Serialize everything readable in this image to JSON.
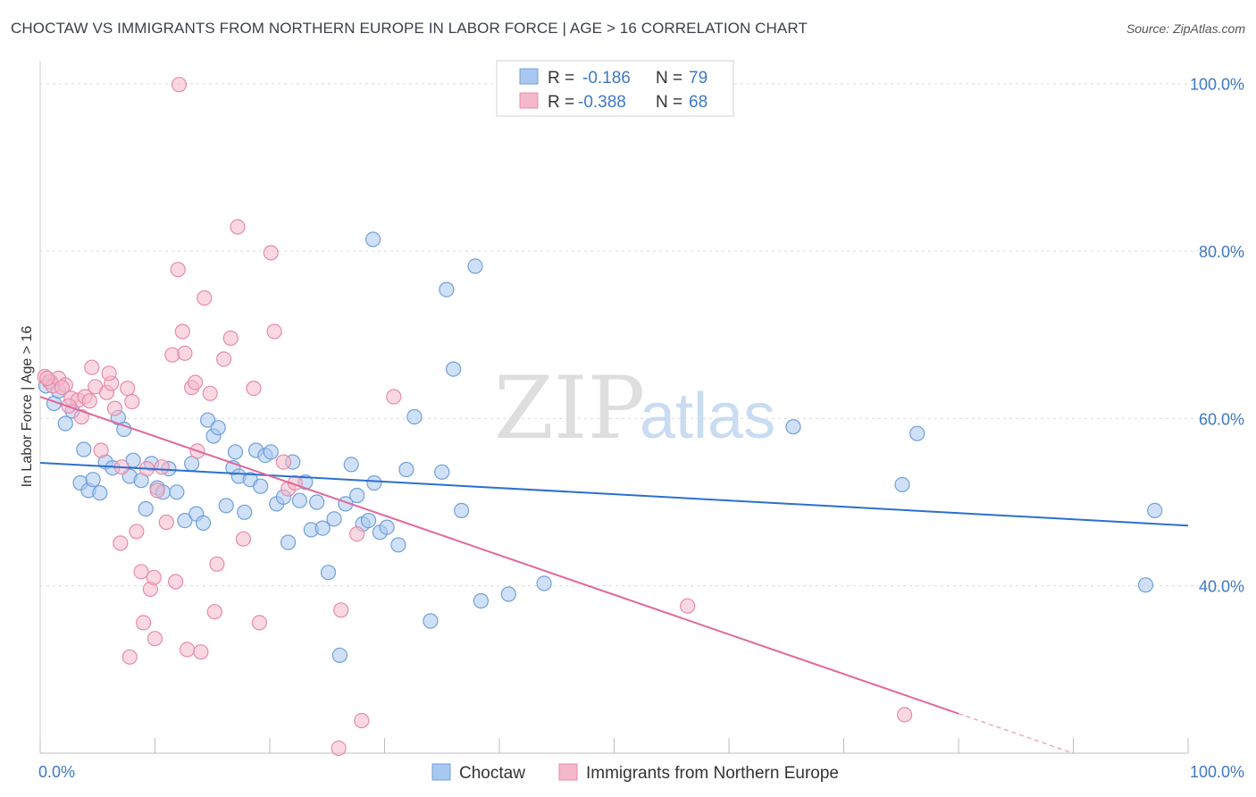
{
  "title": "CHOCTAW VS IMMIGRANTS FROM NORTHERN EUROPE IN LABOR FORCE | AGE > 16 CORRELATION CHART",
  "source": "Source: ZipAtlas.com",
  "watermark": {
    "zip": "ZIP",
    "atlas": "atlas"
  },
  "colors": {
    "blue_fill": "#a9c8f0",
    "blue_stroke": "#6f9fdc",
    "blue_line": "#2c6fcf",
    "pink_fill": "#f5b8cb",
    "pink_stroke": "#e88aa8",
    "pink_line": "#e0679a",
    "grid": "#dcdcdc",
    "tick_text": "#3d78c8"
  },
  "legend": {
    "r_label": "R =",
    "n_label": "N =",
    "series": [
      {
        "r": "-0.186",
        "n": "79"
      },
      {
        "r": "-0.388",
        "n": "68"
      }
    ]
  },
  "bottom_legend": [
    "Choctaw",
    "Immigrants from Northern Europe"
  ],
  "chart_data": {
    "type": "scatter",
    "title": "CHOCTAW VS IMMIGRANTS FROM NORTHERN EUROPE IN LABOR FORCE | AGE > 16 CORRELATION CHART",
    "xlabel": "",
    "ylabel": "In Labor Force | Age > 16",
    "xlim": [
      0,
      100
    ],
    "ylim": [
      20,
      102
    ],
    "x_tick_labels": [
      "0.0%",
      "100.0%"
    ],
    "y_ticks": [
      40,
      60,
      80,
      100
    ],
    "y_tick_labels": [
      "40.0%",
      "60.0%",
      "80.0%",
      "100.0%"
    ],
    "series": [
      {
        "name": "Choctaw",
        "r": -0.186,
        "n": 79,
        "trend": {
          "x0": 0,
          "y0": 54.7,
          "x1": 100,
          "y1": 47.2,
          "dashed_from": null
        },
        "points": [
          [
            0.5,
            63.9
          ],
          [
            1.2,
            61.8
          ],
          [
            2.2,
            59.4
          ],
          [
            2.8,
            60.9
          ],
          [
            3.5,
            52.3
          ],
          [
            3.8,
            56.3
          ],
          [
            4.2,
            51.4
          ],
          [
            4.6,
            52.7
          ],
          [
            5.2,
            51.1
          ],
          [
            5.7,
            54.8
          ],
          [
            6.3,
            54.1
          ],
          [
            6.8,
            60.1
          ],
          [
            7.3,
            58.7
          ],
          [
            7.8,
            53.1
          ],
          [
            8.1,
            55.0
          ],
          [
            8.8,
            52.6
          ],
          [
            9.2,
            49.2
          ],
          [
            9.7,
            54.6
          ],
          [
            10.2,
            51.7
          ],
          [
            10.7,
            51.2
          ],
          [
            11.2,
            54.0
          ],
          [
            11.9,
            51.2
          ],
          [
            12.6,
            47.8
          ],
          [
            13.2,
            54.6
          ],
          [
            13.6,
            48.6
          ],
          [
            14.2,
            47.5
          ],
          [
            14.6,
            59.8
          ],
          [
            15.1,
            57.9
          ],
          [
            15.5,
            58.9
          ],
          [
            16.2,
            49.6
          ],
          [
            16.8,
            54.1
          ],
          [
            17.3,
            53.1
          ],
          [
            17.8,
            48.8
          ],
          [
            18.3,
            52.7
          ],
          [
            18.8,
            56.2
          ],
          [
            19.2,
            51.9
          ],
          [
            19.6,
            55.6
          ],
          [
            20.1,
            56.0
          ],
          [
            20.6,
            49.8
          ],
          [
            21.2,
            50.6
          ],
          [
            21.6,
            45.2
          ],
          [
            22.0,
            54.8
          ],
          [
            22.6,
            50.2
          ],
          [
            23.1,
            52.4
          ],
          [
            23.6,
            46.7
          ],
          [
            24.1,
            50.0
          ],
          [
            24.6,
            46.9
          ],
          [
            25.1,
            41.6
          ],
          [
            25.6,
            48.0
          ],
          [
            26.1,
            31.7
          ],
          [
            26.6,
            49.8
          ],
          [
            27.1,
            54.5
          ],
          [
            27.6,
            50.8
          ],
          [
            28.1,
            47.4
          ],
          [
            28.6,
            47.8
          ],
          [
            29.1,
            52.3
          ],
          [
            29.6,
            46.4
          ],
          [
            30.2,
            47.0
          ],
          [
            31.2,
            44.9
          ],
          [
            31.9,
            53.9
          ],
          [
            32.6,
            60.2
          ],
          [
            34.0,
            35.8
          ],
          [
            35.0,
            53.6
          ],
          [
            35.4,
            75.4
          ],
          [
            36.0,
            65.9
          ],
          [
            36.7,
            49.0
          ],
          [
            37.9,
            78.2
          ],
          [
            38.4,
            38.2
          ],
          [
            40.8,
            39.0
          ],
          [
            43.9,
            40.3
          ],
          [
            65.6,
            59.0
          ],
          [
            75.1,
            52.1
          ],
          [
            76.4,
            58.2
          ],
          [
            96.3,
            40.1
          ],
          [
            97.1,
            49.0
          ],
          [
            29.0,
            81.4
          ],
          [
            0.9,
            64.4
          ],
          [
            1.6,
            63.3
          ],
          [
            17.0,
            56.0
          ]
        ]
      },
      {
        "name": "Immigrants from Northern Europe",
        "r": -0.388,
        "n": 68,
        "trend": {
          "x0": 0,
          "y0": 62.6,
          "x1": 90,
          "y1": 20.0,
          "dashed_from": 80
        },
        "points": [
          [
            0.4,
            65.0
          ],
          [
            0.8,
            64.4
          ],
          [
            1.1,
            63.9
          ],
          [
            1.6,
            64.8
          ],
          [
            2.2,
            64.0
          ],
          [
            2.7,
            62.4
          ],
          [
            3.3,
            62.2
          ],
          [
            3.9,
            62.6
          ],
          [
            4.3,
            62.1
          ],
          [
            4.8,
            63.8
          ],
          [
            5.3,
            56.2
          ],
          [
            5.8,
            63.1
          ],
          [
            6.2,
            64.2
          ],
          [
            6.5,
            61.2
          ],
          [
            7.1,
            54.2
          ],
          [
            7.6,
            63.6
          ],
          [
            8.0,
            62.0
          ],
          [
            8.4,
            46.5
          ],
          [
            8.8,
            41.7
          ],
          [
            9.3,
            54.0
          ],
          [
            9.6,
            39.6
          ],
          [
            10.2,
            51.4
          ],
          [
            10.6,
            54.2
          ],
          [
            11.0,
            47.6
          ],
          [
            11.5,
            67.6
          ],
          [
            12.0,
            77.8
          ],
          [
            12.4,
            70.4
          ],
          [
            12.8,
            32.4
          ],
          [
            13.2,
            63.7
          ],
          [
            13.7,
            56.1
          ],
          [
            14.3,
            74.4
          ],
          [
            14.8,
            63.0
          ],
          [
            15.4,
            42.6
          ],
          [
            16.0,
            67.1
          ],
          [
            16.6,
            69.6
          ],
          [
            17.2,
            82.9
          ],
          [
            17.7,
            45.6
          ],
          [
            18.6,
            63.6
          ],
          [
            19.1,
            35.6
          ],
          [
            20.1,
            79.8
          ],
          [
            20.4,
            70.4
          ],
          [
            21.2,
            54.8
          ],
          [
            21.6,
            51.6
          ],
          [
            26.2,
            37.1
          ],
          [
            27.6,
            46.2
          ],
          [
            28.0,
            23.9
          ],
          [
            30.8,
            62.6
          ],
          [
            56.4,
            37.6
          ],
          [
            75.3,
            24.6
          ],
          [
            9.0,
            35.6
          ],
          [
            10.0,
            33.7
          ],
          [
            7.8,
            31.5
          ],
          [
            4.5,
            66.1
          ],
          [
            6.0,
            65.4
          ],
          [
            12.6,
            67.8
          ],
          [
            13.5,
            64.3
          ],
          [
            15.2,
            36.9
          ],
          [
            11.8,
            40.5
          ],
          [
            14.0,
            32.1
          ],
          [
            2.5,
            61.5
          ],
          [
            1.9,
            63.7
          ],
          [
            0.6,
            64.8
          ],
          [
            3.6,
            60.2
          ],
          [
            7.0,
            45.1
          ],
          [
            9.9,
            41.0
          ],
          [
            12.1,
            99.9
          ],
          [
            26.0,
            20.6
          ],
          [
            22.2,
            52.3
          ]
        ]
      }
    ]
  }
}
